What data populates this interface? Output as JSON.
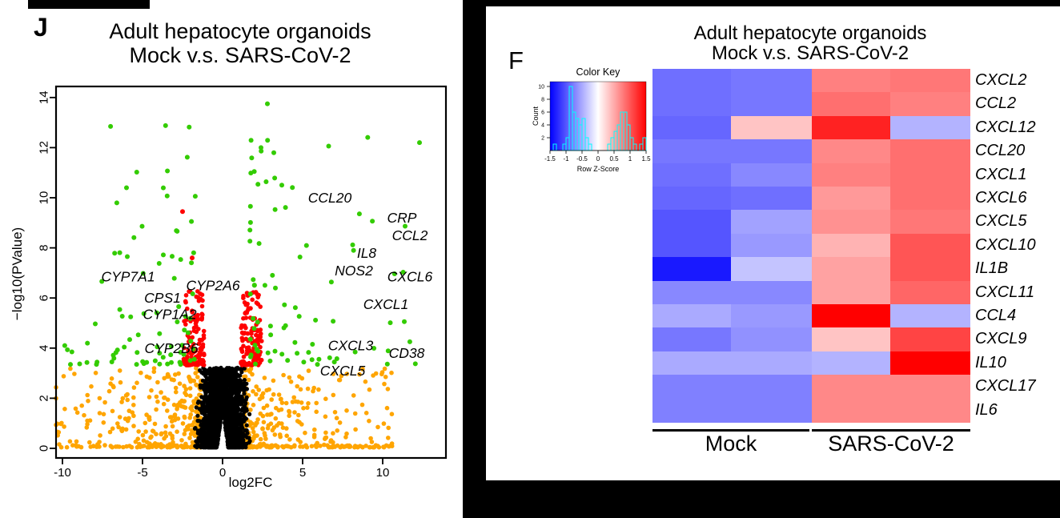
{
  "figure": {
    "background_color": "#FFFFFF",
    "frame_color": "#000000"
  },
  "chart_data": [
    {
      "type": "scatter",
      "subtype": "volcano",
      "panel_label": "J",
      "title_line1": "Adult hepatocyte organoids",
      "title_line2": "Mock v.s. SARS-CoV-2",
      "xlabel": "log2FC",
      "ylabel": "−log10(PValue)",
      "x_ticks": [
        -10,
        -5,
        0,
        5,
        10
      ],
      "y_ticks": [
        0,
        2,
        4,
        6,
        8,
        10,
        12,
        14
      ],
      "xlim": [
        -10.4,
        13.8
      ],
      "ylim": [
        0,
        14.4
      ],
      "point_colors": {
        "not_significant": "#000000",
        "low_significance": "#FFA500",
        "moderate": "#FF0000",
        "significant": "#33CC00"
      },
      "clouds": [
        {
          "kind": "orange",
          "color": "#FFA500",
          "n": 680,
          "r": 2.8
        },
        {
          "kind": "ns",
          "color": "#000000",
          "n": 2200,
          "r": 2.6
        },
        {
          "kind": "red",
          "color": "#FF0000",
          "n": 240,
          "r": 2.8
        },
        {
          "kind": "green",
          "color": "#33CC00",
          "n": 160,
          "r": 3.0
        }
      ],
      "extra_points": [
        {
          "color": "#33CC00",
          "x": 2.8,
          "y": 13.75
        },
        {
          "color": "#33CC00",
          "x": 12.3,
          "y": 12.2
        },
        {
          "color": "#33CC00",
          "x": -6.0,
          "y": 10.4
        },
        {
          "color": "#33CC00",
          "x": 2.4,
          "y": 12.0
        },
        {
          "color": "#33CC00",
          "x": 3.2,
          "y": 11.8
        },
        {
          "color": "#33CC00",
          "x": 3.7,
          "y": 10.5
        },
        {
          "color": "#FF0000",
          "x": -2.5,
          "y": 9.45
        },
        {
          "color": "#FF0000",
          "x": -1.9,
          "y": 7.6
        }
      ],
      "gene_labels": [
        {
          "name": "CCL20",
          "x": 6.7,
          "y": 10.0
        },
        {
          "name": "CRP",
          "x": 11.2,
          "y": 9.2
        },
        {
          "name": "CCL2",
          "x": 11.7,
          "y": 8.5
        },
        {
          "name": "IL8",
          "x": 9.0,
          "y": 7.8
        },
        {
          "name": "NOS2",
          "x": 8.2,
          "y": 7.1
        },
        {
          "name": "CXCL6",
          "x": 11.7,
          "y": 6.85
        },
        {
          "name": "CXCL1",
          "x": 10.2,
          "y": 5.75
        },
        {
          "name": "CXCL3",
          "x": 8.0,
          "y": 4.1
        },
        {
          "name": "CD38",
          "x": 11.5,
          "y": 3.8
        },
        {
          "name": "CXCL5",
          "x": 7.5,
          "y": 3.1
        },
        {
          "name": "CYP7A1",
          "x": -5.9,
          "y": 6.85
        },
        {
          "name": "CYP2A6",
          "x": -0.6,
          "y": 6.5
        },
        {
          "name": "CPS1",
          "x": -3.75,
          "y": 6.0
        },
        {
          "name": "CYP1A2",
          "x": -3.3,
          "y": 5.35
        },
        {
          "name": "CYP2B6",
          "x": -3.2,
          "y": 4.0
        }
      ]
    },
    {
      "type": "heatmap",
      "panel_label": "F",
      "title_line1": "Adult hepatocyte organoids",
      "title_line2": "Mock v.s. SARS-CoV-2",
      "color_key": {
        "title": "Color Key",
        "xlabel": "Row Z-Score",
        "ylabel": "Count",
        "x_ticks": [
          "-1.5",
          "-1",
          "-0.5",
          "0",
          "0.5",
          "1",
          "1.5"
        ],
        "y_ticks": [
          2,
          4,
          6,
          8,
          10
        ],
        "zlim": [
          -1.5,
          1.5
        ],
        "gradient": [
          "#0000FF",
          "#FFFFFF",
          "#FF0000"
        ],
        "hist_color": "#00FFFF",
        "hist_counts": [
          0,
          1,
          0,
          0,
          1,
          2,
          10,
          6,
          5,
          4,
          5,
          2,
          1,
          0,
          0,
          0,
          0,
          0,
          1,
          2,
          3,
          4,
          6,
          6,
          4,
          2,
          1,
          0,
          1,
          2
        ]
      },
      "group_labels": [
        "Mock",
        "SARS-CoV-2"
      ],
      "columns_per_group": [
        2,
        2
      ],
      "rows": [
        "CXCL2",
        "CCL2",
        "CXCL12",
        "CCL20",
        "CXCL1",
        "CXCL6",
        "CXCL5",
        "CXCL10",
        "IL1B",
        "CXCL11",
        "CCL4",
        "CXCL9",
        "IL10",
        "CXCL17",
        "IL6"
      ],
      "values": [
        [
          -0.85,
          -0.8,
          0.75,
          0.8
        ],
        [
          -0.85,
          -0.8,
          0.85,
          0.75
        ],
        [
          -0.9,
          0.35,
          1.3,
          -0.45
        ],
        [
          -0.8,
          -0.8,
          0.7,
          0.85
        ],
        [
          -0.85,
          -0.7,
          0.75,
          0.85
        ],
        [
          -0.9,
          -0.85,
          0.6,
          0.85
        ],
        [
          -1.0,
          -0.55,
          0.65,
          0.8
        ],
        [
          -1.0,
          -0.6,
          0.45,
          1.0
        ],
        [
          -1.35,
          -0.35,
          0.55,
          1.0
        ],
        [
          -0.7,
          -0.7,
          0.55,
          0.9
        ],
        [
          -0.5,
          -0.6,
          1.5,
          -0.45
        ],
        [
          -0.8,
          -0.65,
          0.35,
          1.1
        ],
        [
          -0.5,
          -0.5,
          -0.45,
          1.5
        ],
        [
          -0.75,
          -0.75,
          0.7,
          0.7
        ],
        [
          -0.75,
          -0.75,
          0.7,
          0.7
        ]
      ]
    }
  ]
}
